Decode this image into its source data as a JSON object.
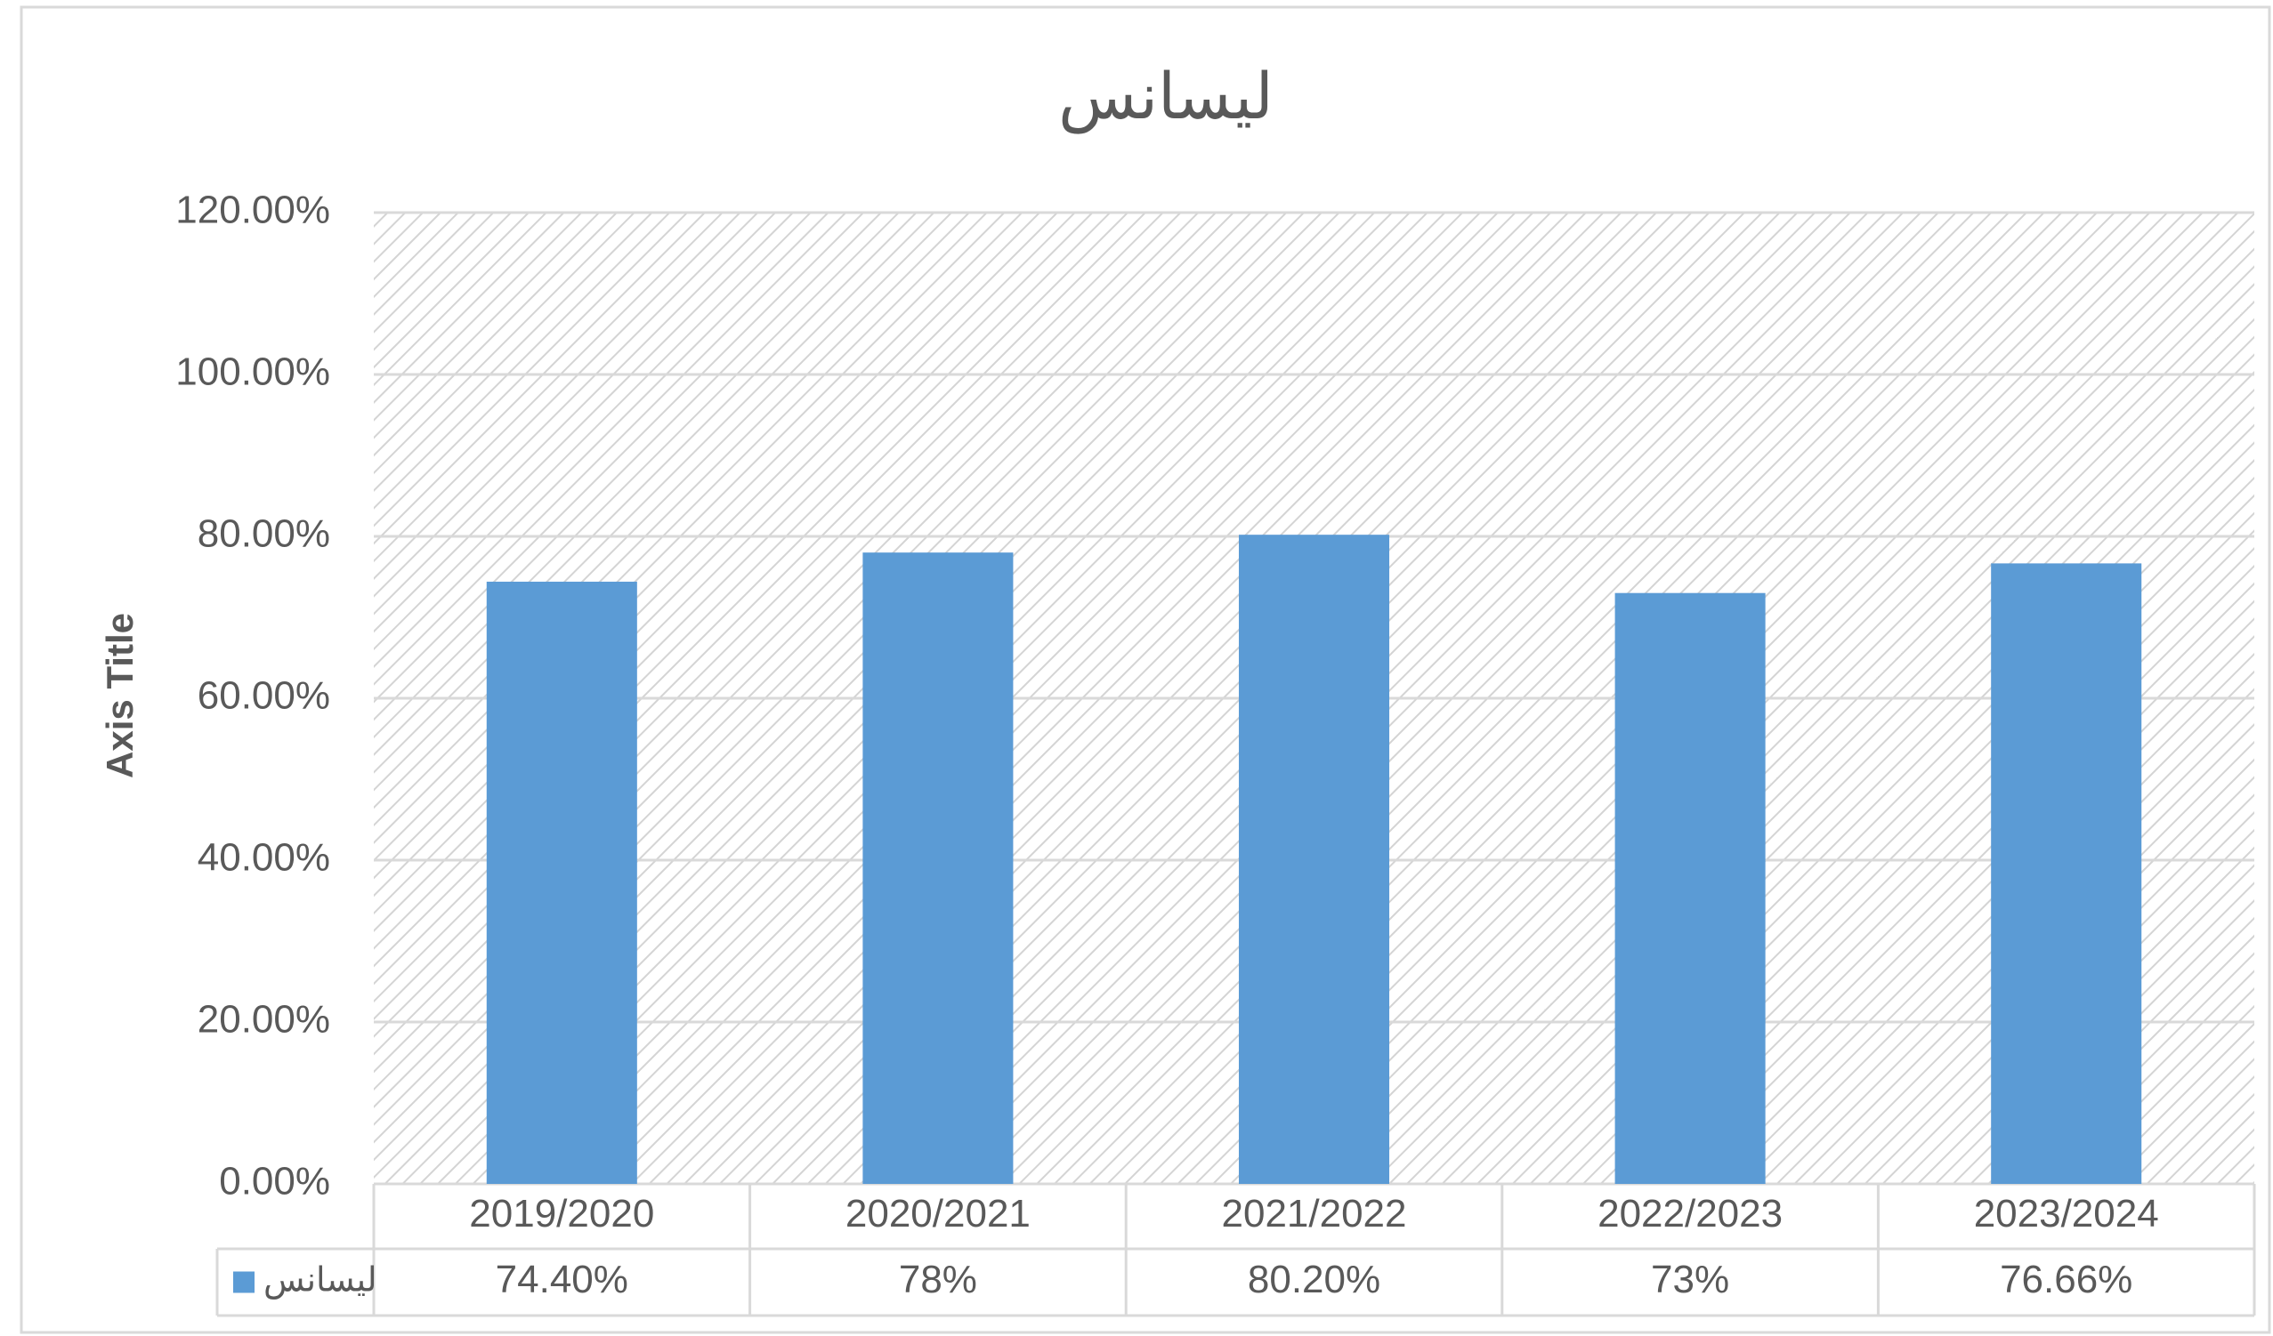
{
  "chart_data": {
    "type": "bar",
    "title": "ليسانس",
    "y_axis_label": "Axis Title",
    "categories": [
      "2019/2020",
      "2020/2021",
      "2021/2022",
      "2022/2023",
      "2023/2024"
    ],
    "series": [
      {
        "name": "ليسانس",
        "color": "#5b9bd5",
        "values": [
          74.4,
          78,
          80.2,
          73,
          76.66
        ],
        "value_labels": [
          "74.40%",
          "78%",
          "80.20%",
          "73%",
          "76.66%"
        ]
      }
    ],
    "ylim": [
      0,
      120
    ],
    "yticks": [
      {
        "value": 0,
        "label": "0.00%"
      },
      {
        "value": 20,
        "label": "20.00%"
      },
      {
        "value": 40,
        "label": "40.00%"
      },
      {
        "value": 60,
        "label": "60.00%"
      },
      {
        "value": 80,
        "label": "80.00%"
      },
      {
        "value": 100,
        "label": "100.00%"
      },
      {
        "value": 120,
        "label": "120.00%"
      }
    ],
    "grid": true
  }
}
